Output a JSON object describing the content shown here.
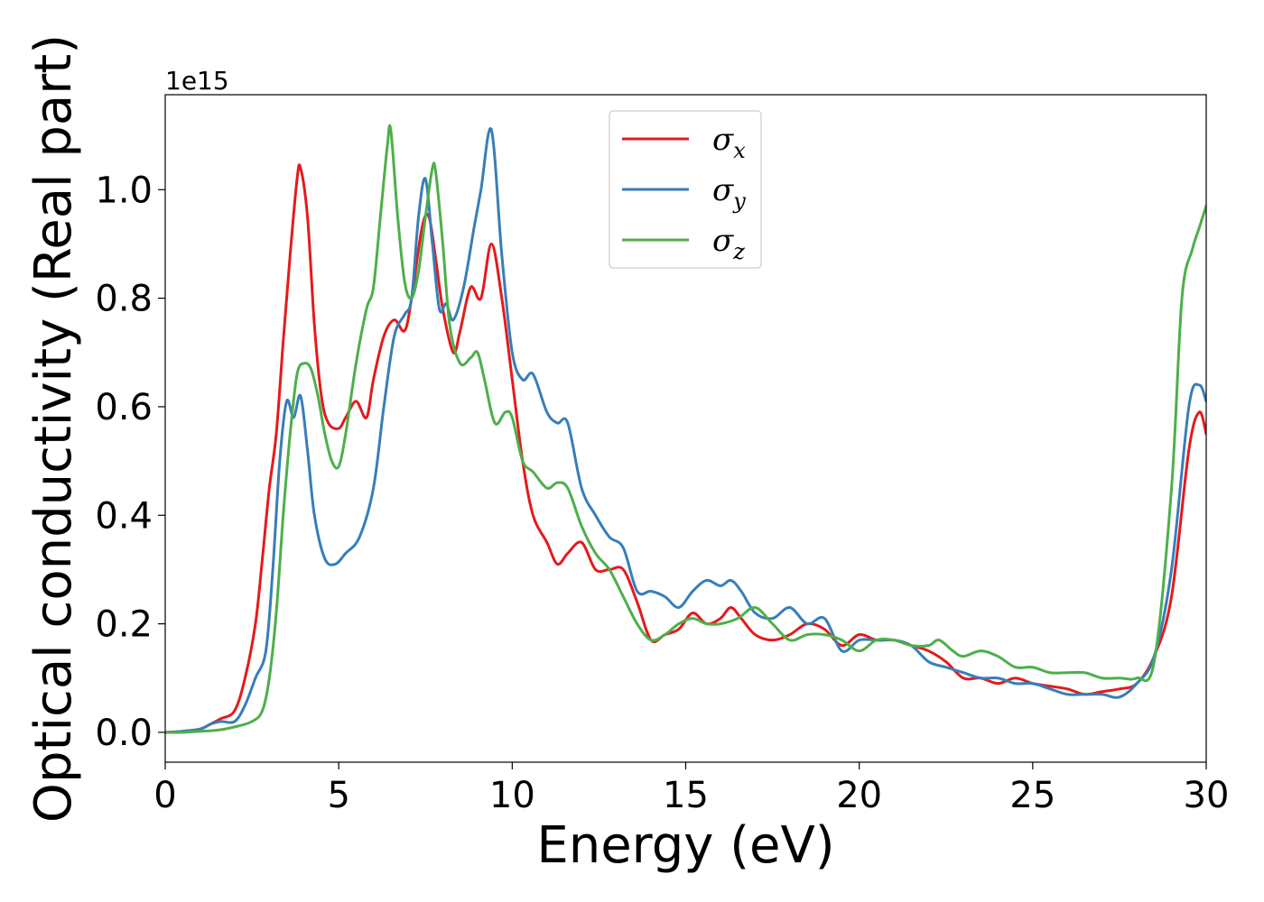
{
  "chart_data": {
    "type": "line",
    "title": "",
    "xlabel": "Energy (eV)",
    "ylabel": "Optical conductivity (Real part)",
    "y_offset_label": "1e15",
    "xlim": [
      0,
      30
    ],
    "ylim": [
      -0.055,
      1.175
    ],
    "xticks": [
      0,
      5,
      10,
      15,
      20,
      25,
      30
    ],
    "xtick_labels": [
      "0",
      "5",
      "10",
      "15",
      "20",
      "25",
      "30"
    ],
    "yticks": [
      0.0,
      0.2,
      0.4,
      0.6,
      0.8,
      1.0
    ],
    "ytick_labels": [
      "0.0",
      "0.2",
      "0.4",
      "0.6",
      "0.8",
      "1.0"
    ],
    "grid": false,
    "legend_position": "top-center",
    "series": [
      {
        "name": "σx",
        "symbol": "σ",
        "subscript": "x",
        "color": "#e41a1c",
        "x": [
          0,
          0.5,
          1,
          1.3,
          1.6,
          2,
          2.3,
          2.6,
          2.8,
          3.0,
          3.2,
          3.4,
          3.6,
          3.8,
          3.9,
          4.1,
          4.3,
          4.5,
          4.7,
          5.0,
          5.2,
          5.5,
          5.8,
          6.0,
          6.3,
          6.6,
          6.9,
          7.1,
          7.4,
          7.6,
          7.8,
          8.0,
          8.3,
          8.5,
          8.8,
          9.1,
          9.4,
          9.7,
          10.0,
          10.3,
          10.6,
          11.0,
          11.3,
          11.6,
          12.0,
          12.4,
          12.8,
          13.2,
          13.6,
          14.0,
          14.4,
          14.8,
          15.2,
          15.6,
          16.0,
          16.3,
          16.6,
          17.0,
          17.5,
          18.0,
          18.5,
          19.0,
          19.5,
          20.0,
          20.5,
          21.0,
          21.5,
          22.0,
          22.5,
          23.0,
          23.5,
          24.0,
          24.5,
          25.0,
          25.5,
          26.0,
          26.5,
          27.0,
          27.5,
          28.0,
          28.5,
          29.0,
          29.5,
          29.8,
          30.0
        ],
        "y": [
          0.0,
          0.002,
          0.006,
          0.015,
          0.025,
          0.04,
          0.1,
          0.2,
          0.32,
          0.45,
          0.55,
          0.72,
          0.88,
          1.02,
          1.04,
          0.95,
          0.75,
          0.62,
          0.57,
          0.56,
          0.58,
          0.61,
          0.58,
          0.65,
          0.73,
          0.76,
          0.74,
          0.8,
          0.93,
          0.95,
          0.87,
          0.78,
          0.7,
          0.74,
          0.82,
          0.8,
          0.9,
          0.8,
          0.65,
          0.5,
          0.4,
          0.35,
          0.31,
          0.33,
          0.35,
          0.3,
          0.3,
          0.3,
          0.24,
          0.17,
          0.18,
          0.19,
          0.22,
          0.2,
          0.21,
          0.23,
          0.21,
          0.18,
          0.17,
          0.18,
          0.2,
          0.19,
          0.16,
          0.18,
          0.17,
          0.17,
          0.16,
          0.15,
          0.13,
          0.1,
          0.1,
          0.09,
          0.1,
          0.09,
          0.085,
          0.08,
          0.07,
          0.075,
          0.08,
          0.09,
          0.14,
          0.25,
          0.52,
          0.59,
          0.55
        ]
      },
      {
        "name": "σy",
        "symbol": "σ",
        "subscript": "y",
        "color": "#377eb8",
        "x": [
          0,
          0.5,
          1,
          1.3,
          1.6,
          2,
          2.3,
          2.6,
          2.9,
          3.1,
          3.3,
          3.5,
          3.7,
          3.9,
          4.1,
          4.3,
          4.6,
          4.9,
          5.2,
          5.6,
          6.0,
          6.3,
          6.6,
          6.9,
          7.1,
          7.3,
          7.5,
          7.7,
          7.9,
          8.1,
          8.3,
          8.6,
          8.9,
          9.1,
          9.4,
          9.7,
          10.0,
          10.3,
          10.6,
          11.0,
          11.3,
          11.6,
          12.0,
          12.4,
          12.8,
          13.2,
          13.6,
          14.0,
          14.4,
          14.8,
          15.2,
          15.6,
          16.0,
          16.3,
          16.6,
          17.0,
          17.5,
          18.0,
          18.5,
          19.0,
          19.5,
          20.0,
          20.5,
          21.0,
          21.5,
          22.0,
          22.5,
          23.0,
          23.5,
          24.0,
          24.5,
          25.0,
          25.5,
          26.0,
          26.5,
          27.0,
          27.5,
          28.0,
          28.5,
          29.0,
          29.5,
          29.8,
          30.0
        ],
        "y": [
          0.0,
          0.002,
          0.006,
          0.015,
          0.02,
          0.02,
          0.05,
          0.1,
          0.15,
          0.3,
          0.5,
          0.61,
          0.58,
          0.62,
          0.52,
          0.4,
          0.32,
          0.31,
          0.33,
          0.36,
          0.45,
          0.6,
          0.73,
          0.77,
          0.8,
          0.95,
          1.02,
          0.9,
          0.78,
          0.79,
          0.76,
          0.82,
          0.93,
          1.0,
          1.11,
          0.88,
          0.7,
          0.65,
          0.66,
          0.59,
          0.57,
          0.57,
          0.45,
          0.4,
          0.36,
          0.34,
          0.26,
          0.26,
          0.25,
          0.23,
          0.26,
          0.28,
          0.27,
          0.28,
          0.26,
          0.22,
          0.21,
          0.23,
          0.2,
          0.21,
          0.15,
          0.17,
          0.17,
          0.17,
          0.16,
          0.13,
          0.12,
          0.11,
          0.1,
          0.1,
          0.09,
          0.09,
          0.08,
          0.07,
          0.07,
          0.07,
          0.065,
          0.09,
          0.14,
          0.3,
          0.6,
          0.64,
          0.61
        ]
      },
      {
        "name": "σz",
        "symbol": "σ",
        "subscript": "z",
        "color": "#4daf4a",
        "x": [
          0,
          0.5,
          1,
          1.5,
          2,
          2.5,
          2.8,
          3.0,
          3.2,
          3.4,
          3.6,
          3.8,
          4.0,
          4.2,
          4.4,
          4.6,
          4.8,
          5.0,
          5.2,
          5.5,
          5.8,
          6.0,
          6.2,
          6.4,
          6.5,
          6.7,
          6.9,
          7.1,
          7.3,
          7.5,
          7.7,
          7.8,
          8.0,
          8.2,
          8.5,
          8.8,
          9.0,
          9.2,
          9.5,
          9.8,
          10.0,
          10.3,
          10.6,
          11.0,
          11.3,
          11.6,
          12.0,
          12.4,
          12.8,
          13.2,
          13.6,
          14.0,
          14.4,
          14.8,
          15.2,
          15.6,
          16.0,
          16.5,
          17.0,
          17.5,
          18.0,
          18.5,
          19.0,
          19.5,
          20.0,
          20.5,
          21.0,
          21.5,
          22.0,
          22.3,
          22.7,
          23.0,
          23.5,
          24.0,
          24.5,
          25.0,
          25.5,
          26.0,
          26.5,
          27.0,
          27.5,
          28.0,
          28.5,
          29.0,
          29.3,
          29.6,
          29.8,
          30.0
        ],
        "y": [
          0.0,
          0.0,
          0.002,
          0.004,
          0.01,
          0.02,
          0.04,
          0.1,
          0.22,
          0.4,
          0.55,
          0.66,
          0.68,
          0.67,
          0.62,
          0.55,
          0.5,
          0.49,
          0.55,
          0.68,
          0.78,
          0.82,
          0.95,
          1.08,
          1.11,
          0.95,
          0.83,
          0.8,
          0.85,
          0.95,
          1.04,
          1.03,
          0.9,
          0.75,
          0.68,
          0.69,
          0.7,
          0.65,
          0.57,
          0.59,
          0.58,
          0.5,
          0.48,
          0.45,
          0.46,
          0.45,
          0.38,
          0.33,
          0.3,
          0.25,
          0.2,
          0.17,
          0.18,
          0.2,
          0.21,
          0.2,
          0.2,
          0.21,
          0.23,
          0.2,
          0.17,
          0.18,
          0.18,
          0.17,
          0.15,
          0.17,
          0.17,
          0.16,
          0.16,
          0.17,
          0.15,
          0.14,
          0.15,
          0.14,
          0.12,
          0.12,
          0.11,
          0.11,
          0.11,
          0.1,
          0.1,
          0.1,
          0.13,
          0.45,
          0.8,
          0.89,
          0.93,
          0.97
        ]
      }
    ]
  }
}
